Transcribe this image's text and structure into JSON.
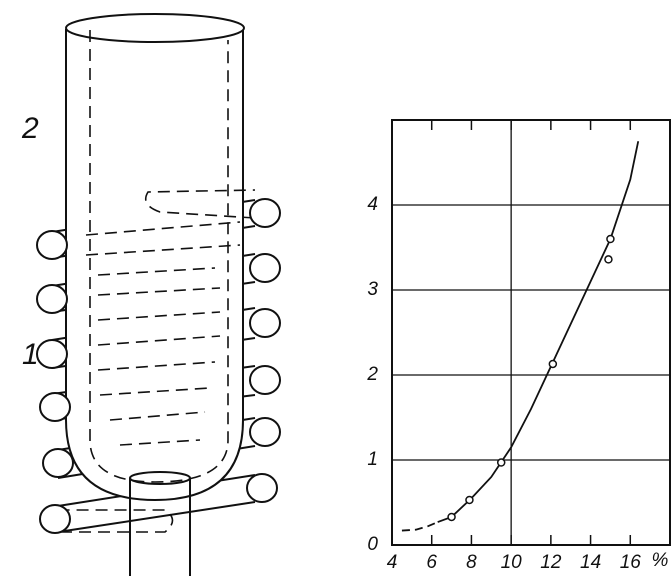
{
  "diagram": {
    "labels": [
      "2",
      "1"
    ]
  },
  "chart_data": {
    "type": "scatter",
    "xlabel": "%",
    "xlim": [
      4,
      18
    ],
    "ylim": [
      0,
      5
    ],
    "xticks": [
      4,
      6,
      8,
      10,
      12,
      14,
      16
    ],
    "yticks": [
      0,
      1,
      2,
      3,
      4
    ],
    "xgrid": [
      10
    ],
    "grid": true,
    "color": "#111111",
    "points": {
      "x": [
        7,
        7.9,
        9.5,
        12.1,
        14.9,
        15
      ],
      "values": [
        0.33,
        0.53,
        0.97,
        2.13,
        3.36,
        3.6
      ]
    },
    "curves": [
      {
        "style": "solid",
        "x": [
          6.3,
          7,
          8,
          9,
          10,
          11,
          12,
          13,
          14,
          15,
          16,
          16.4
        ],
        "values": [
          0.27,
          0.33,
          0.55,
          0.8,
          1.15,
          1.6,
          2.1,
          2.6,
          3.1,
          3.6,
          4.3,
          4.75
        ]
      },
      {
        "style": "dashed",
        "x": [
          4.5,
          5.2,
          5.8,
          6.3
        ],
        "values": [
          0.17,
          0.18,
          0.22,
          0.27
        ]
      }
    ]
  }
}
